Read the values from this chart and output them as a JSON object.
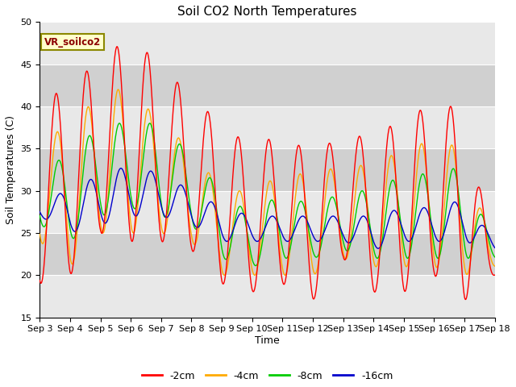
{
  "title": "Soil CO2 North Temperatures",
  "xlabel": "Time",
  "ylabel": "Soil Temperatures (C)",
  "ylim": [
    15,
    50
  ],
  "background_color": "#ffffff",
  "plot_bg": "#d8d8d8",
  "legend_entries": [
    "-2cm",
    "-4cm",
    "-8cm",
    "-16cm"
  ],
  "legend_colors": [
    "#ff0000",
    "#ffaa00",
    "#00cc00",
    "#0000cc"
  ],
  "annotation_text": "VR_soilco2",
  "x_tick_labels": [
    "Sep 3",
    "Sep 4",
    "Sep 5",
    "Sep 6",
    "Sep 7",
    "Sep 8",
    "Sep 9",
    "Sep 10",
    "Sep 11",
    "Sep 12",
    "Sep 13",
    "Sep 14",
    "Sep 15",
    "Sep 16",
    "Sep 17",
    "Sep 18"
  ],
  "yticks": [
    15,
    20,
    25,
    30,
    35,
    40,
    45,
    50
  ],
  "num_days": 16,
  "hours_per_day": 24
}
